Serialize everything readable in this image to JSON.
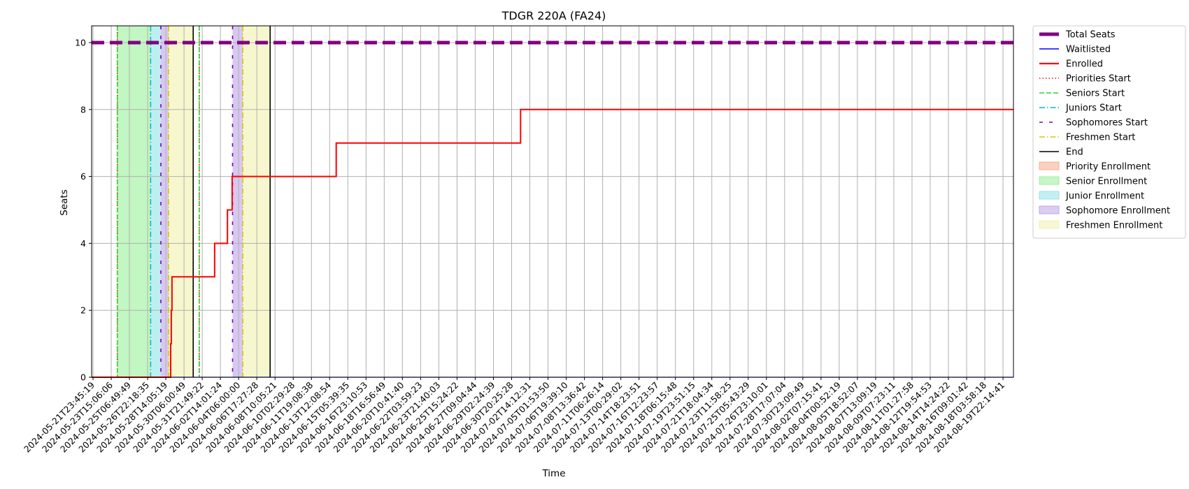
{
  "chart_data": {
    "type": "line",
    "title": "TDGR 220A (FA24)",
    "xlabel": "Time",
    "ylabel": "Seats",
    "ylim": [
      0,
      10.5
    ],
    "yticks": [
      0,
      2,
      4,
      6,
      8,
      10
    ],
    "grid": true,
    "legend_placement": "outside-top-right",
    "x_start": "2024-05-21T23:45:19",
    "x_end": "2024-08-20T00:00:00",
    "x_tick_labels": [
      "2024-05-21T23:45:19",
      "2024-05-23T15:06:06",
      "2024-05-25T06:49:49",
      "2024-05-26T22:18:35",
      "2024-05-28T14:05:19",
      "2024-05-30T06:00:49",
      "2024-05-31T21:49:22",
      "2024-06-02T14:01:24",
      "2024-06-04T06:00:00",
      "2024-06-06T17:27:28",
      "2024-06-08T10:05:21",
      "2024-06-10T02:29:28",
      "2024-06-11T19:08:38",
      "2024-06-13T12:08:54",
      "2024-06-15T05:39:35",
      "2024-06-16T23:10:53",
      "2024-06-18T16:56:49",
      "2024-06-20T10:41:40",
      "2024-06-22T03:59:23",
      "2024-06-23T21:40:03",
      "2024-06-25T15:24:22",
      "2024-06-27T09:04:44",
      "2024-06-29T02:24:39",
      "2024-06-30T20:25:28",
      "2024-07-02T14:12:31",
      "2024-07-05T01:53:50",
      "2024-07-06T19:39:10",
      "2024-07-08T13:36:42",
      "2024-07-11T06:26:14",
      "2024-07-13T00:29:02",
      "2024-07-14T18:23:51",
      "2024-07-16T12:23:57",
      "2024-07-18T06:15:48",
      "2024-07-19T23:51:15",
      "2024-07-21T18:04:34",
      "2024-07-23T11:58:25",
      "2024-07-25T05:43:29",
      "2024-07-26T23:10:01",
      "2024-07-28T17:07:04",
      "2024-07-30T23:09:49",
      "2024-08-02T07:15:41",
      "2024-08-04T00:52:19",
      "2024-08-05T18:52:07",
      "2024-08-07T13:09:19",
      "2024-08-09T07:23:11",
      "2024-08-11T01:27:58",
      "2024-08-12T19:54:53",
      "2024-08-14T14:24:22",
      "2024-08-16T09:01:42",
      "2024-08-18T03:58:18",
      "2024-08-19T22:14:41"
    ],
    "series": [
      {
        "name": "Total Seats",
        "color": "#800080",
        "style": "dashed",
        "points": [
          [
            "2024-05-21T23:45:19",
            10
          ],
          [
            "2024-08-20T00:00:00",
            10
          ]
        ]
      },
      {
        "name": "Waitlisted",
        "color": "#0000ff",
        "style": "solid",
        "points": [
          [
            "2024-05-21T23:45:19",
            0
          ],
          [
            "2024-08-20T00:00:00",
            0
          ]
        ]
      },
      {
        "name": "Enrolled",
        "color": "#ff0000",
        "style": "solid",
        "points": [
          [
            "2024-05-21T23:45:19",
            0
          ],
          [
            "2024-05-29T17:00:00",
            0
          ],
          [
            "2024-05-29T17:00:00",
            1
          ],
          [
            "2024-05-29T18:30:00",
            1
          ],
          [
            "2024-05-29T18:30:00",
            2
          ],
          [
            "2024-05-29T20:00:00",
            2
          ],
          [
            "2024-05-29T20:00:00",
            3
          ],
          [
            "2024-06-03T00:00:00",
            3
          ],
          [
            "2024-06-03T00:00:00",
            4
          ],
          [
            "2024-06-04T06:00:00",
            4
          ],
          [
            "2024-06-04T06:00:00",
            5
          ],
          [
            "2024-06-04T17:00:00",
            5
          ],
          [
            "2024-06-04T17:00:00",
            6
          ],
          [
            "2024-06-14T21:00:00",
            6
          ],
          [
            "2024-06-14T21:00:00",
            7
          ],
          [
            "2024-07-02T21:00:00",
            7
          ],
          [
            "2024-07-02T21:00:00",
            8
          ],
          [
            "2024-08-20T00:00:00",
            8
          ]
        ]
      }
    ],
    "event_lines": [
      {
        "name": "Priorities Start",
        "color": "#ff0000",
        "style": "dotted",
        "times": [
          "2024-05-24T12:00:00",
          "2024-06-01T12:00:00"
        ]
      },
      {
        "name": "Seniors Start",
        "color": "#32cd32",
        "style": "dashed",
        "times": [
          "2024-05-24T12:00:00",
          "2024-06-01T12:00:00"
        ]
      },
      {
        "name": "Juniors Start",
        "color": "#00bfbf",
        "style": "dashdot",
        "times": [
          "2024-05-27T18:00:00"
        ]
      },
      {
        "name": "Sophomores Start",
        "color": "#6a0dad",
        "style": "loosedash",
        "times": [
          "2024-05-28T18:00:00",
          "2024-06-04T18:00:00"
        ]
      },
      {
        "name": "Freshmen Start",
        "color": "#d4c800",
        "style": "dashdot",
        "times": [
          "2024-05-29T12:00:00",
          "2024-06-05T18:00:00"
        ]
      },
      {
        "name": "End",
        "color": "#000000",
        "style": "solid",
        "times": [
          "2024-05-31T21:49:22",
          "2024-06-08T10:05:21"
        ]
      }
    ],
    "regions": [
      {
        "name": "Priority Enrollment",
        "color": "#f4a582",
        "spans": []
      },
      {
        "name": "Senior Enrollment",
        "color": "#90ee90",
        "spans": [
          [
            "2024-05-24T12:00:00",
            "2024-05-27T18:00:00"
          ]
        ]
      },
      {
        "name": "Junior Enrollment",
        "color": "#87e0e8",
        "spans": [
          [
            "2024-05-27T18:00:00",
            "2024-05-28T18:00:00"
          ]
        ]
      },
      {
        "name": "Sophomore Enrollment",
        "color": "#b89ae6",
        "spans": [
          [
            "2024-05-28T18:00:00",
            "2024-05-29T12:00:00"
          ],
          [
            "2024-06-04T18:00:00",
            "2024-06-05T18:00:00"
          ]
        ]
      },
      {
        "name": "Freshmen Enrollment",
        "color": "#f0f0a8",
        "spans": [
          [
            "2024-05-29T12:00:00",
            "2024-05-31T21:49:22"
          ],
          [
            "2024-06-05T18:00:00",
            "2024-06-08T10:05:21"
          ]
        ]
      }
    ],
    "legend": [
      {
        "label": "Total Seats",
        "kind": "line",
        "color": "#800080",
        "style": "thick"
      },
      {
        "label": "Waitlisted",
        "kind": "line",
        "color": "#0000ff",
        "style": "solid"
      },
      {
        "label": "Enrolled",
        "kind": "line",
        "color": "#ff0000",
        "style": "solidbold"
      },
      {
        "label": "Priorities Start",
        "kind": "line",
        "color": "#ff0000",
        "style": "dotted"
      },
      {
        "label": "Seniors Start",
        "kind": "line",
        "color": "#32cd32",
        "style": "dashed"
      },
      {
        "label": "Juniors Start",
        "kind": "line",
        "color": "#00bfbf",
        "style": "dashdot"
      },
      {
        "label": "Sophomores Start",
        "kind": "line",
        "color": "#6a0dad",
        "style": "loosedash"
      },
      {
        "label": "Freshmen Start",
        "kind": "line",
        "color": "#d4c800",
        "style": "dashdot"
      },
      {
        "label": "End",
        "kind": "line",
        "color": "#000000",
        "style": "solid"
      },
      {
        "label": "Priority Enrollment",
        "kind": "patch",
        "color": "#f4a582"
      },
      {
        "label": "Senior Enrollment",
        "kind": "patch",
        "color": "#90ee90"
      },
      {
        "label": "Junior Enrollment",
        "kind": "patch",
        "color": "#87e0e8"
      },
      {
        "label": "Sophomore Enrollment",
        "kind": "patch",
        "color": "#b89ae6"
      },
      {
        "label": "Freshmen Enrollment",
        "kind": "patch",
        "color": "#f0f0a8"
      }
    ]
  }
}
